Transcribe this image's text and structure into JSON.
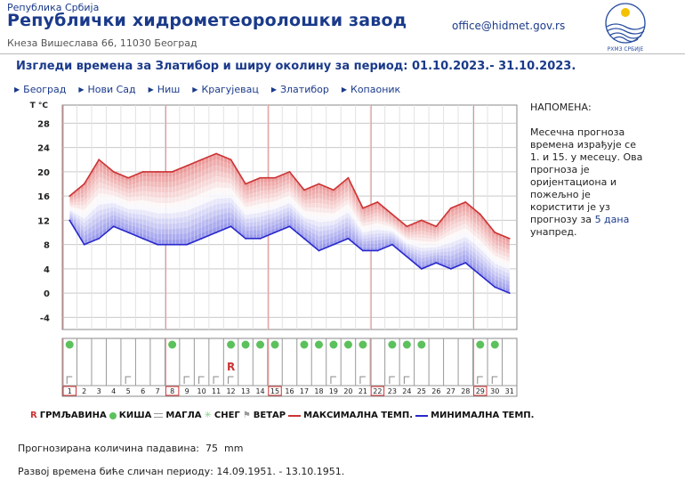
{
  "header": {
    "institution_small": "Република Србија",
    "title": "Републички хидрометеоролошки завод",
    "address": "Кнеза Вишеслава 66, 11030 Београд",
    "email": "office@hidmet.gov.rs",
    "logo_text": "РХМЗ СРБИЈЕ"
  },
  "subtitle": "Изгледи времена за Златибор и ширу околину за период: 01.10.2023.- 31.10.2023.",
  "nav": [
    "Београд",
    "Нови Сад",
    "Ниш",
    "Крагујевац",
    "Златибор",
    "Копаоник"
  ],
  "note": {
    "heading": "НАПОМЕНА:",
    "text_before": "Месечна прогноза времена израђује се 1. и 15. у месецу. Ова прогноза је оријентациона и пожељно је користити је уз прогнозу за ",
    "link": "5 дана",
    "text_after": " унапред."
  },
  "legend": {
    "storm": "ГРМЉАВИНА",
    "rain": "КИША",
    "fog": "МАГЛА",
    "snow": "СНЕГ",
    "wind": "ВЕТАР",
    "max": "МАКСИМАЛНА ТЕМП.",
    "min": "МИНИМАЛНА ТЕМП.",
    "colors": {
      "max": "#cc3333",
      "min": "#2828cc",
      "rain": "#5cc15c"
    }
  },
  "precip_label": "Прогнозирана количина падавина:",
  "precip_value": "75",
  "precip_unit": "mm",
  "similar_text": "Развој времена биће сличан периоду: 14.09.1951. - 13.10.1951.",
  "chart_data": {
    "type": "line",
    "ylabel": "T °C",
    "y_ticks": [
      28,
      24,
      20,
      16,
      12,
      8,
      4,
      0,
      -4
    ],
    "ylim": [
      -6,
      31
    ],
    "x": [
      1,
      2,
      3,
      4,
      5,
      6,
      7,
      8,
      9,
      10,
      11,
      12,
      13,
      14,
      15,
      16,
      17,
      18,
      19,
      20,
      21,
      22,
      23,
      24,
      25,
      26,
      27,
      28,
      29,
      30,
      31
    ],
    "series": [
      {
        "name": "МАКСИМАЛНА ТЕМП.",
        "values": [
          16,
          18,
          22,
          20,
          19,
          20,
          20,
          20,
          21,
          22,
          23,
          22,
          18,
          19,
          19,
          20,
          17,
          18,
          17,
          19,
          14,
          15,
          13,
          11,
          12,
          11,
          14,
          15,
          13,
          10,
          9
        ]
      },
      {
        "name": "МИНИМАЛНА ТЕМП.",
        "values": [
          12,
          8,
          9,
          11,
          10,
          9,
          8,
          8,
          8,
          9,
          10,
          11,
          9,
          9,
          10,
          11,
          9,
          7,
          8,
          9,
          7,
          7,
          8,
          6,
          4,
          5,
          4,
          5,
          3,
          1,
          0
        ]
      }
    ],
    "vertical_markers": [
      1,
      8,
      15,
      22,
      29
    ],
    "weather": {
      "rain": [
        1,
        8,
        12,
        13,
        14,
        15,
        17,
        18,
        19,
        20,
        21,
        23,
        24,
        25,
        29,
        30
      ],
      "storm": [
        12
      ],
      "wind": [
        1,
        5,
        9,
        10,
        11,
        12,
        19,
        21,
        23,
        24,
        29,
        30
      ]
    },
    "boxed_days": [
      1,
      8,
      15,
      22,
      29
    ],
    "grid": true
  }
}
